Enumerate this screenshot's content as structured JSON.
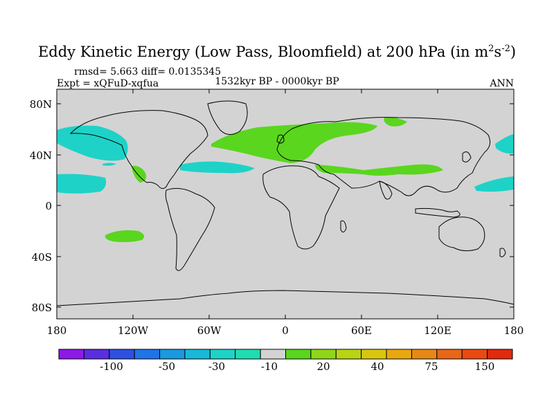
{
  "title": {
    "main": "Eddy Kinetic Energy (Low Pass, Bloomfield) at 200 hPa (in m",
    "sup1": "2",
    "mid": "s",
    "sup2": "-2",
    "end": ")"
  },
  "stats": "rmsd= 5.663 diff= 0.0135345",
  "expt": "Expt = xQFuD-xqfua",
  "period": "1532kyr BP - 0000kyr BP",
  "season": "ANN",
  "lat_labels": [
    "80N",
    "40N",
    "0",
    "40S",
    "80S"
  ],
  "lon_labels": [
    "180",
    "120W",
    "60W",
    "0",
    "60E",
    "120E",
    "180"
  ],
  "colorbar": {
    "colors": [
      "#8c1ae6",
      "#5a2ee0",
      "#2f4fe0",
      "#1f74e6",
      "#1a98e0",
      "#19b8d8",
      "#1ed2c8",
      "#20dcb0",
      "#d3d3d3",
      "#5ad61e",
      "#8fd61a",
      "#b8d414",
      "#d8c60e",
      "#e8a812",
      "#e68814",
      "#e86618",
      "#e84a12",
      "#e02a0e"
    ],
    "labels": [
      "-100",
      "-50",
      "-30",
      "-10",
      "20",
      "40",
      "75",
      "150"
    ]
  },
  "map_colors": {
    "background": "#d3d3d3",
    "positive": "#5ad61e",
    "negative": "#1ed2c8"
  }
}
